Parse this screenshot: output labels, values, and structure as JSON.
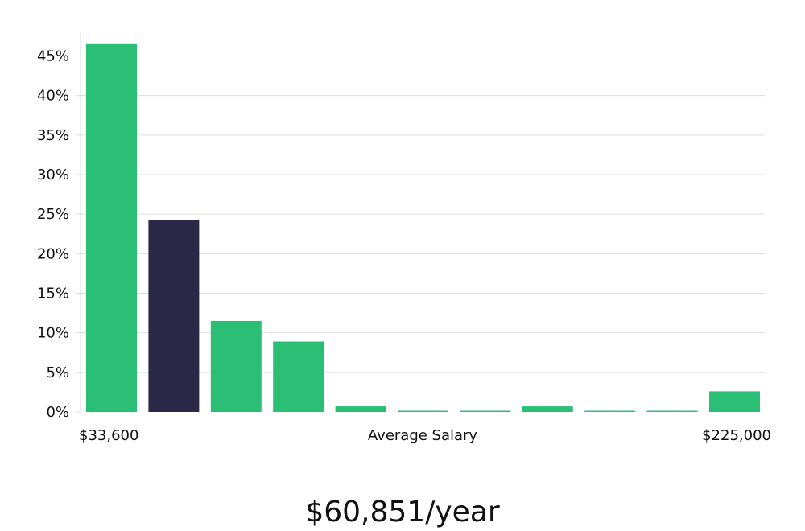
{
  "chart_data": {
    "type": "bar",
    "x_label_left": "$33,600",
    "x_label_center": "Average Salary",
    "x_label_right": "$225,000",
    "y_ticks": [
      "0%",
      "5%",
      "10%",
      "15%",
      "20%",
      "25%",
      "30%",
      "35%",
      "40%",
      "45%"
    ],
    "ylim": [
      0,
      48
    ],
    "values": [
      46.5,
      24.2,
      11.5,
      8.9,
      0.7,
      0.1,
      0.1,
      0.7,
      0.1,
      0.1,
      2.6
    ],
    "highlight_index": 1,
    "colors": {
      "bar": "#2bbf76",
      "highlight": "#2a2846",
      "grid": "#dddddd"
    },
    "grid": true
  },
  "average_salary": "$60,851/year"
}
